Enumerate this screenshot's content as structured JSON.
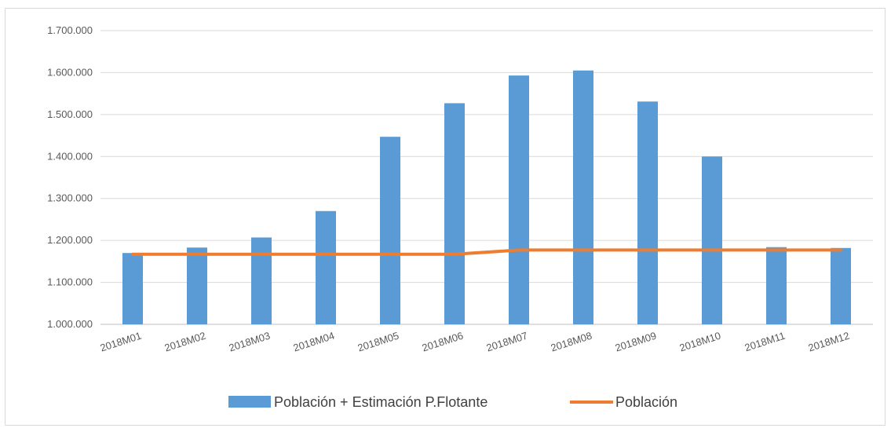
{
  "chart_data": {
    "type": "bar",
    "categories": [
      "2018M01",
      "2018M02",
      "2018M03",
      "2018M04",
      "2018M05",
      "2018M06",
      "2018M07",
      "2018M08",
      "2018M09",
      "2018M10",
      "2018M11",
      "2018M12"
    ],
    "series": [
      {
        "name": "Población + Estimación P.Flotante",
        "type": "bar",
        "color": "#5b9bd5",
        "values": [
          1170000,
          1183000,
          1207000,
          1270000,
          1447000,
          1527000,
          1593000,
          1605000,
          1531000,
          1400000,
          1184000,
          1182000
        ]
      },
      {
        "name": "Población",
        "type": "line",
        "color": "#ed7d31",
        "values": [
          1167000,
          1167000,
          1167000,
          1167000,
          1167000,
          1167000,
          1177000,
          1177000,
          1177000,
          1177000,
          1177000,
          1177000
        ]
      }
    ],
    "ylim": [
      1000000,
      1700000
    ],
    "yticks": [
      "1.000.000",
      "1.100.000",
      "1.200.000",
      "1.300.000",
      "1.400.000",
      "1.500.000",
      "1.600.000",
      "1.700.000"
    ],
    "ytick_values": [
      1000000,
      1100000,
      1200000,
      1300000,
      1400000,
      1500000,
      1600000,
      1700000
    ],
    "grid": true,
    "legend_position": "bottom",
    "title": "",
    "xlabel": "",
    "ylabel": ""
  }
}
